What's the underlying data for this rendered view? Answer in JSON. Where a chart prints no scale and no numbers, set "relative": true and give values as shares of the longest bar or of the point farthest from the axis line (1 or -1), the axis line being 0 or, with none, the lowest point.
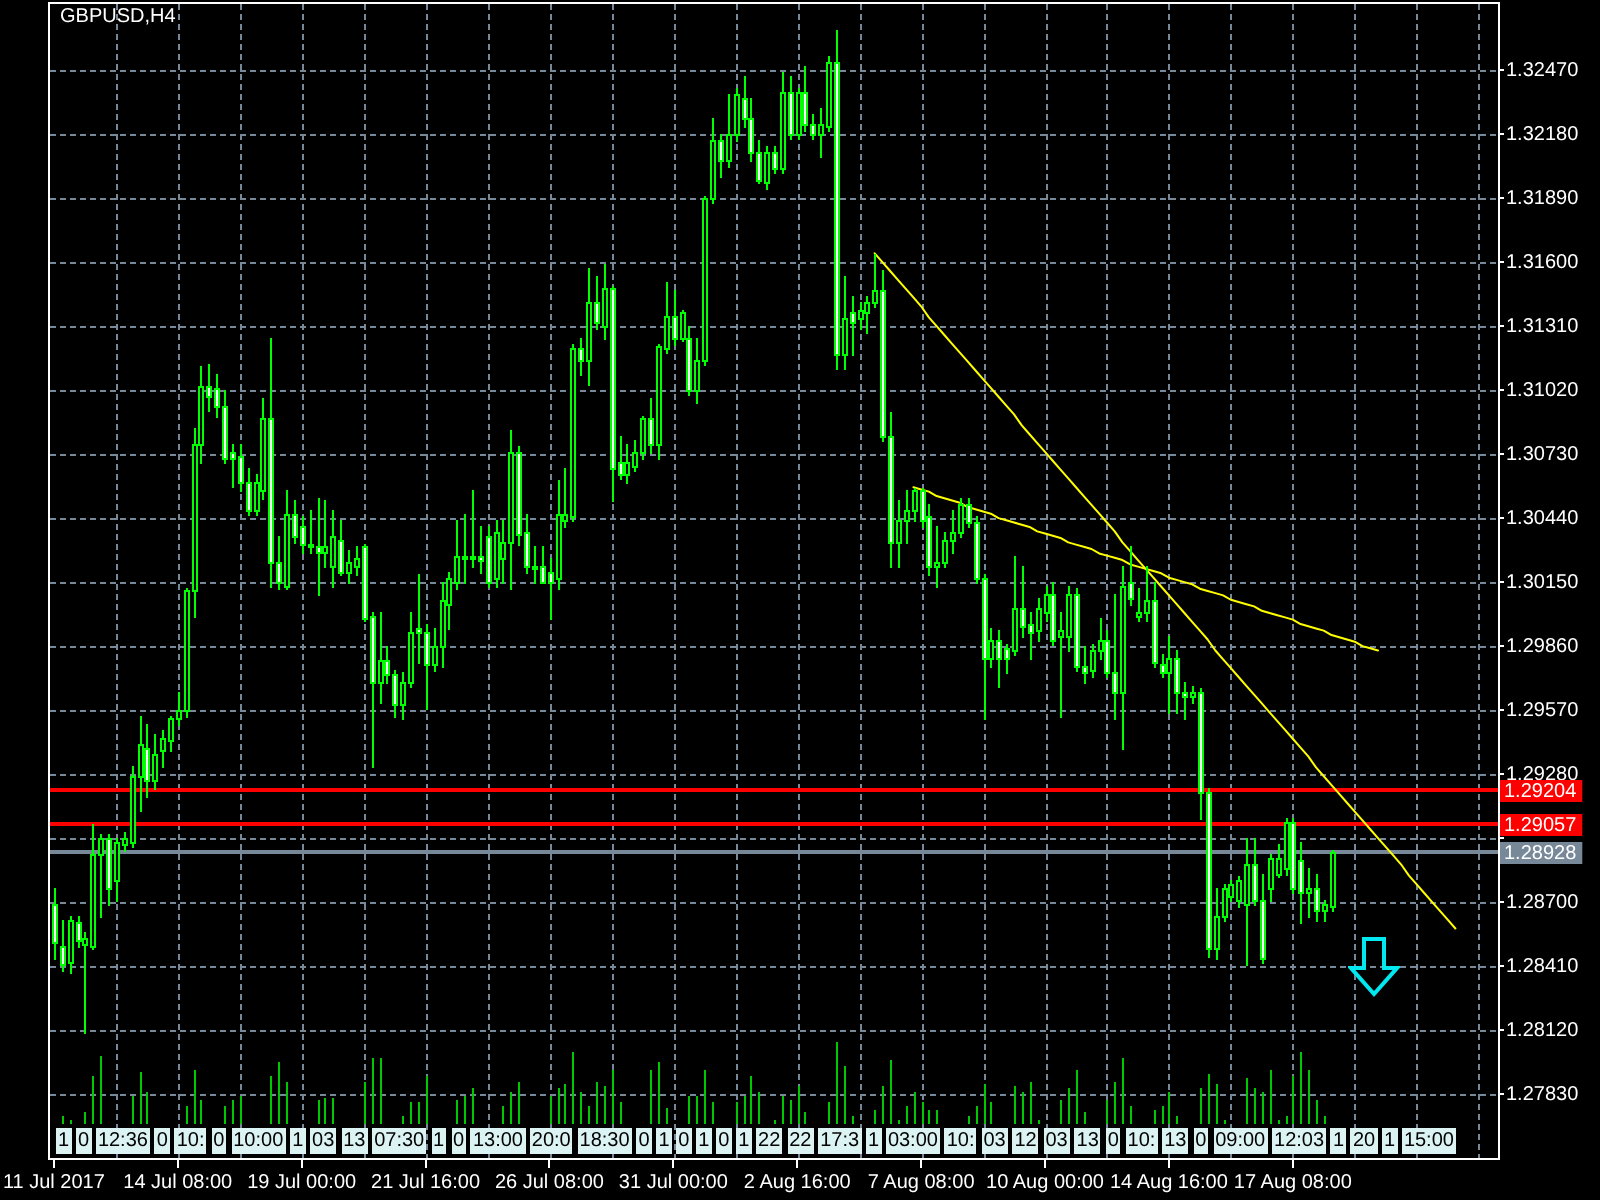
{
  "chart_data": [
    {
      "type": "candlestick",
      "title": "GBPUSD,H4",
      "categories": [
        "11 Jul 2017",
        null,
        null,
        null,
        null,
        null,
        null,
        null,
        null,
        null,
        null,
        null,
        null,
        null,
        null,
        null,
        "14 Jul 08:00",
        null,
        null,
        null,
        null,
        null,
        null,
        null,
        null,
        null,
        null,
        null,
        null,
        null,
        null,
        null,
        "19 Jul 00:00",
        null,
        null,
        null,
        null,
        null,
        null,
        null,
        null,
        null,
        null,
        null,
        null,
        null,
        null,
        null,
        "21 Jul 16:00",
        null,
        null,
        null,
        null,
        null,
        null,
        null,
        null,
        null,
        null,
        null,
        null,
        null,
        null,
        null,
        "26 Jul 08:00",
        null,
        null,
        null,
        null,
        null,
        null,
        null,
        null,
        null,
        null,
        null,
        null,
        null,
        null,
        null,
        "31 Jul 00:00",
        null,
        null,
        null,
        null,
        null,
        null,
        null,
        null,
        null,
        null,
        null,
        null,
        null,
        null,
        null,
        "2 Aug 16:00",
        null,
        null,
        null,
        null,
        null,
        null,
        null,
        null,
        null,
        null,
        null,
        null,
        null,
        null,
        null,
        "7 Aug 08:00",
        null,
        null,
        null,
        null,
        null,
        null,
        null,
        null,
        null,
        null,
        null,
        null,
        null,
        null,
        null,
        "10 Aug 00:00",
        null,
        null,
        null,
        null,
        null,
        null,
        null,
        null,
        null,
        null,
        null,
        null,
        null,
        null,
        null,
        "14 Aug 16:00",
        null,
        null,
        null,
        null,
        null,
        null,
        null,
        null,
        null,
        null,
        null,
        null,
        null,
        null,
        null,
        "17 Aug 08:00",
        null,
        null,
        null,
        null,
        null,
        null,
        null,
        null,
        null,
        null,
        null,
        null,
        null,
        null,
        null,
        null,
        null,
        null,
        null,
        null,
        null,
        null,
        null,
        null,
        null,
        null
      ],
      "series": [
        {
          "color": "#00ff00",
          "ohlc": [
            [
              1.2869,
              1.2876,
              1.2845,
              1.2852
            ],
            [
              1.285,
              1.2862,
              1.2839,
              1.2842
            ],
            [
              1.2843,
              1.2864,
              1.2838,
              1.2862
            ],
            [
              1.2861,
              1.2864,
              1.285,
              1.2853
            ],
            [
              1.2851,
              1.2856,
              1.2811,
              1.2854
            ],
            [
              1.285,
              1.2905,
              1.2849,
              1.2892
            ],
            [
              1.2892,
              1.2901,
              1.2864,
              1.2899
            ],
            [
              1.2899,
              1.2901,
              1.2869,
              1.2876
            ],
            [
              1.288,
              1.2899,
              1.2871,
              1.2897
            ],
            [
              1.2896,
              1.2902,
              1.2894,
              1.2899
            ],
            [
              1.2897,
              1.2932,
              1.2895,
              1.2927
            ],
            [
              1.2927,
              1.2954,
              1.2912,
              1.2942
            ],
            [
              1.294,
              1.2951,
              1.2918,
              1.2925
            ],
            [
              1.2925,
              1.2946,
              1.2922,
              1.2937
            ],
            [
              1.2939,
              1.2948,
              1.2932,
              1.2944
            ],
            [
              1.2943,
              1.2954,
              1.2939,
              1.2953
            ],
            [
              1.2953,
              1.2965,
              1.2951,
              1.2957
            ],
            [
              1.2957,
              1.3012,
              1.2954,
              1.3011
            ],
            [
              1.3011,
              1.3085,
              1.3,
              1.3078
            ],
            [
              1.3078,
              1.3113,
              1.3069,
              1.3104
            ],
            [
              1.3104,
              1.3114,
              1.3093,
              1.3099
            ],
            [
              1.3103,
              1.3109,
              1.309,
              1.3095
            ],
            [
              1.3095,
              1.3102,
              1.3069,
              1.3071
            ],
            [
              1.3074,
              1.3078,
              1.3059,
              1.3071
            ],
            [
              1.3072,
              1.3078,
              1.3057,
              1.306
            ],
            [
              1.306,
              1.3067,
              1.3046,
              1.3048
            ],
            [
              1.3048,
              1.3064,
              1.3046,
              1.306
            ],
            [
              1.3057,
              1.3098,
              1.3053,
              1.3089
            ],
            [
              1.3089,
              1.3126,
              1.3013,
              1.3024
            ],
            [
              1.3024,
              1.3036,
              1.3012,
              1.3015
            ],
            [
              1.3013,
              1.3057,
              1.3012,
              1.3046
            ],
            [
              1.3046,
              1.3052,
              1.3033,
              1.3036
            ],
            [
              1.304,
              1.3045,
              1.3029,
              1.3032
            ],
            [
              1.3032,
              1.3048,
              1.3029,
              1.3031
            ],
            [
              1.3031,
              1.3053,
              1.301,
              1.3029
            ],
            [
              1.3029,
              1.3052,
              1.3022,
              1.3031
            ],
            [
              1.3022,
              1.3048,
              1.3013,
              1.3036
            ],
            [
              1.3034,
              1.3043,
              1.3019,
              1.302
            ],
            [
              1.302,
              1.303,
              1.3015,
              1.3024
            ],
            [
              1.3022,
              1.3031,
              1.3019,
              1.3026
            ],
            [
              1.3031,
              1.3032,
              1.2998,
              1.2999
            ],
            [
              1.3,
              1.3001,
              1.2932,
              1.297
            ],
            [
              1.297,
              1.3001,
              1.2961,
              1.298
            ],
            [
              1.298,
              1.2986,
              1.297,
              1.2973
            ],
            [
              1.2973,
              1.2975,
              1.2954,
              1.296
            ],
            [
              1.296,
              1.2974,
              1.2953,
              1.297
            ],
            [
              1.297,
              1.3001,
              1.2968,
              1.2992
            ],
            [
              1.2994,
              1.3019,
              1.2979,
              1.2992
            ],
            [
              1.2992,
              1.2996,
              1.2958,
              1.2978
            ],
            [
              1.2978,
              1.2994,
              1.2975,
              1.2986
            ],
            [
              1.2986,
              1.3015,
              1.2977,
              1.3007
            ],
            [
              1.3005,
              1.302,
              1.2994,
              1.3017
            ],
            [
              1.3015,
              1.3043,
              1.3012,
              1.3027
            ],
            [
              1.3027,
              1.3046,
              1.3015,
              1.3026
            ],
            [
              1.3026,
              1.3057,
              1.3022,
              1.3027
            ],
            [
              1.3027,
              1.304,
              1.302,
              1.3025
            ],
            [
              1.3036,
              1.304,
              1.3013,
              1.3015
            ],
            [
              1.3017,
              1.3043,
              1.3013,
              1.3038
            ],
            [
              1.3026,
              1.3043,
              1.3015,
              1.3033
            ],
            [
              1.3033,
              1.3084,
              1.3012,
              1.3074
            ],
            [
              1.3074,
              1.3077,
              1.3032,
              1.3037
            ],
            [
              1.3038,
              1.3046,
              1.302,
              1.3022
            ],
            [
              1.3022,
              1.3031,
              1.3015,
              1.3021
            ],
            [
              1.3022,
              1.3031,
              1.3015,
              1.3015
            ],
            [
              1.302,
              1.3026,
              1.2999,
              1.3015
            ],
            [
              1.3017,
              1.3061,
              1.3012,
              1.3046
            ],
            [
              1.3043,
              1.3067,
              1.304,
              1.3046
            ],
            [
              1.3045,
              1.3123,
              1.3043,
              1.3121
            ],
            [
              1.3121,
              1.3126,
              1.3109,
              1.3116
            ],
            [
              1.3116,
              1.3157,
              1.3105,
              1.3142
            ],
            [
              1.3142,
              1.3154,
              1.313,
              1.3133
            ],
            [
              1.3131,
              1.3159,
              1.3126,
              1.3148
            ],
            [
              1.3148,
              1.3149,
              1.3052,
              1.3067
            ],
            [
              1.3069,
              1.3081,
              1.3062,
              1.3064
            ],
            [
              1.3064,
              1.3078,
              1.306,
              1.3069
            ],
            [
              1.3068,
              1.3079,
              1.3066,
              1.3074
            ],
            [
              1.3074,
              1.309,
              1.3071,
              1.3089
            ],
            [
              1.3089,
              1.3098,
              1.3074,
              1.3078
            ],
            [
              1.3078,
              1.3123,
              1.3071,
              1.3122
            ],
            [
              1.3121,
              1.3151,
              1.3119,
              1.3136
            ],
            [
              1.3136,
              1.3147,
              1.3123,
              1.3126
            ],
            [
              1.3126,
              1.3138,
              1.3125,
              1.3137
            ],
            [
              1.3126,
              1.3131,
              1.31,
              1.3102
            ],
            [
              1.3102,
              1.3126,
              1.3097,
              1.3116
            ],
            [
              1.3116,
              1.319,
              1.3114,
              1.3189
            ],
            [
              1.3189,
              1.3225,
              1.3187,
              1.3215
            ],
            [
              1.3215,
              1.3218,
              1.3199,
              1.3206
            ],
            [
              1.3206,
              1.3236,
              1.3204,
              1.3218
            ],
            [
              1.3218,
              1.3239,
              1.3215,
              1.3236
            ],
            [
              1.3234,
              1.3244,
              1.3222,
              1.3225
            ],
            [
              1.3225,
              1.3234,
              1.3206,
              1.321
            ],
            [
              1.321,
              1.3215,
              1.3196,
              1.3197
            ],
            [
              1.3196,
              1.3213,
              1.3194,
              1.321
            ],
            [
              1.321,
              1.3213,
              1.3201,
              1.3203
            ],
            [
              1.3203,
              1.3246,
              1.3201,
              1.3237
            ],
            [
              1.3237,
              1.3244,
              1.3216,
              1.3218
            ],
            [
              1.3218,
              1.3239,
              1.3216,
              1.3237
            ],
            [
              1.3237,
              1.3249,
              1.322,
              1.3223
            ],
            [
              1.3223,
              1.3227,
              1.3216,
              1.3218
            ],
            [
              1.3218,
              1.323,
              1.3208,
              1.3223
            ],
            [
              1.3222,
              1.3253,
              1.322,
              1.3251
            ],
            [
              1.3251,
              1.3265,
              1.3112,
              1.3118
            ],
            [
              1.3118,
              1.3154,
              1.3112,
              1.3135
            ],
            [
              1.3137,
              1.3145,
              1.3118,
              1.3133
            ],
            [
              1.3135,
              1.3142,
              1.313,
              1.3138
            ],
            [
              1.3137,
              1.3145,
              1.3128,
              1.3142
            ],
            [
              1.3142,
              1.3164,
              1.314,
              1.3147
            ],
            [
              1.3147,
              1.3156,
              1.3079,
              1.3081
            ],
            [
              1.3081,
              1.3092,
              1.3022,
              1.3033
            ],
            [
              1.3033,
              1.3052,
              1.3022,
              1.3043
            ],
            [
              1.3043,
              1.3057,
              1.3033,
              1.3048
            ],
            [
              1.3048,
              1.3058,
              1.3043,
              1.3057
            ],
            [
              1.3057,
              1.3058,
              1.304,
              1.3043
            ],
            [
              1.3045,
              1.305,
              1.3019,
              1.3022
            ],
            [
              1.3022,
              1.304,
              1.3013,
              1.3024
            ],
            [
              1.3024,
              1.3038,
              1.3022,
              1.3034
            ],
            [
              1.3034,
              1.3048,
              1.3029,
              1.3038
            ],
            [
              1.3038,
              1.3053,
              1.3036,
              1.305
            ],
            [
              1.305,
              1.3053,
              1.304,
              1.3042
            ],
            [
              1.3042,
              1.3045,
              1.3015,
              1.3017
            ],
            [
              1.3017,
              1.3019,
              1.2953,
              1.2981
            ],
            [
              1.2981,
              1.2994,
              1.2977,
              1.2989
            ],
            [
              1.2989,
              1.2993,
              1.2968,
              1.2981
            ],
            [
              1.2985,
              1.2987,
              1.2974,
              1.2981
            ],
            [
              1.2984,
              1.3027,
              1.2982,
              1.3003
            ],
            [
              1.3003,
              1.3022,
              1.2991,
              1.2995
            ],
            [
              1.2996,
              1.3001,
              1.2981,
              1.2992
            ],
            [
              1.2993,
              1.3008,
              1.2989,
              1.3003
            ],
            [
              1.3001,
              1.3013,
              1.2998,
              1.301
            ],
            [
              1.301,
              1.3015,
              1.2987,
              1.2989
            ],
            [
              1.2991,
              1.3001,
              1.2954,
              1.2993
            ],
            [
              1.2991,
              1.3013,
              1.2984,
              1.301
            ],
            [
              1.301,
              1.3012,
              1.2975,
              1.2977
            ],
            [
              1.2977,
              1.2986,
              1.297,
              1.2974
            ],
            [
              1.2975,
              1.2987,
              1.2972,
              1.2984
            ],
            [
              1.2984,
              1.2999,
              1.2981,
              1.2989
            ],
            [
              1.2989,
              1.2993,
              1.2972,
              1.2974
            ],
            [
              1.2974,
              1.301,
              1.2953,
              1.2965
            ],
            [
              1.2965,
              1.3022,
              1.294,
              1.3013
            ],
            [
              1.3015,
              1.3031,
              1.3005,
              1.3008
            ],
            [
              1.3,
              1.3012,
              1.2998,
              1.3001
            ],
            [
              1.3001,
              1.3022,
              1.2998,
              1.3007
            ],
            [
              1.3007,
              1.3015,
              1.2977,
              1.2979
            ],
            [
              1.2978,
              1.2982,
              1.2972,
              1.2974
            ],
            [
              1.2974,
              1.2991,
              1.2956,
              1.2981
            ],
            [
              1.2981,
              1.2984,
              1.2956,
              1.2965
            ],
            [
              1.2965,
              1.297,
              1.2953,
              1.2963
            ],
            [
              1.2963,
              1.2968,
              1.2961,
              1.2965
            ],
            [
              1.2965,
              1.2967,
              1.2908,
              1.292
            ],
            [
              1.292,
              1.2922,
              1.2846,
              1.2849
            ],
            [
              1.2849,
              1.2876,
              1.2845,
              1.2864
            ],
            [
              1.2864,
              1.2878,
              1.2862,
              1.2876
            ],
            [
              1.2873,
              1.288,
              1.2871,
              1.2878
            ],
            [
              1.2871,
              1.2882,
              1.2868,
              1.288
            ],
            [
              1.2869,
              1.2899,
              1.2842,
              1.2887
            ],
            [
              1.2887,
              1.2899,
              1.2869,
              1.2871
            ],
            [
              1.2871,
              1.2883,
              1.2843,
              1.2845
            ],
            [
              1.2876,
              1.2892,
              1.2871,
              1.289
            ],
            [
              1.2883,
              1.2896,
              1.2882,
              1.289
            ],
            [
              1.2885,
              1.2908,
              1.2883,
              1.2906
            ],
            [
              1.2906,
              1.2908,
              1.2875,
              1.2876
            ],
            [
              1.2889,
              1.2897,
              1.2861,
              1.2875
            ],
            [
              1.2875,
              1.2885,
              1.2864,
              1.2876
            ],
            [
              1.2876,
              1.2883,
              1.2862,
              1.2866
            ],
            [
              1.2866,
              1.2871,
              1.2862,
              1.2869
            ],
            [
              1.2868,
              1.2894,
              1.2866,
              1.2893
            ],
            null,
            null,
            null,
            null,
            null,
            null,
            null,
            null,
            null,
            null,
            null,
            null,
            null,
            null,
            null,
            null,
            null,
            null,
            null,
            null,
            null
          ]
        },
        {
          "type": "line",
          "color": "#ffff00",
          "values": [
            null,
            null,
            null,
            null,
            null,
            null,
            null,
            null,
            null,
            null,
            null,
            null,
            null,
            null,
            null,
            null,
            null,
            null,
            null,
            null,
            null,
            null,
            null,
            null,
            null,
            null,
            null,
            null,
            null,
            null,
            null,
            null,
            null,
            null,
            null,
            null,
            null,
            null,
            null,
            null,
            null,
            null,
            null,
            null,
            null,
            null,
            null,
            null,
            null,
            null,
            null,
            null,
            null,
            null,
            null,
            null,
            null,
            null,
            null,
            null,
            null,
            null,
            null,
            null,
            null,
            null,
            null,
            null,
            null,
            null,
            null,
            null,
            null,
            null,
            null,
            null,
            null,
            null,
            null,
            null,
            null,
            null,
            null,
            null,
            null,
            null,
            null,
            null,
            null,
            null,
            null,
            null,
            null,
            null,
            null,
            null,
            null,
            null,
            null,
            null,
            null,
            null,
            null,
            null,
            null,
            null,
            1.3164,
            1.316,
            1.3156,
            1.3152,
            1.3148,
            1.3144,
            1.314,
            1.3135,
            1.3131,
            1.3127,
            1.3123,
            1.3119,
            1.3115,
            1.3111,
            1.3107,
            1.3103,
            1.3099,
            1.3095,
            1.3091,
            1.3086,
            1.3082,
            1.3078,
            1.3074,
            1.307,
            1.3066,
            1.3062,
            1.3058,
            1.3054,
            1.305,
            1.3046,
            1.3042,
            1.3038,
            1.3033,
            1.3029,
            1.3025,
            1.3021,
            1.3017,
            1.3013,
            1.3009,
            1.3005,
            1.3001,
            1.2997,
            1.2993,
            1.2989,
            1.2984,
            1.298,
            1.2976,
            1.2972,
            1.2968,
            1.2964,
            1.296,
            1.2956,
            1.2952,
            1.2948,
            1.2944,
            1.294,
            1.2936,
            1.2931,
            1.2927,
            1.2923,
            1.2919,
            1.2915,
            1.2911,
            1.2907,
            1.2903,
            1.2899,
            1.2895,
            1.2891,
            1.2887,
            1.2882,
            1.2878,
            1.2874,
            1.287,
            1.2866,
            1.2862,
            1.2858,
            null,
            null,
            null,
            null,
            null
          ]
        },
        {
          "type": "line",
          "color": "#ffff00",
          "values": [
            null,
            null,
            null,
            null,
            null,
            null,
            null,
            null,
            null,
            null,
            null,
            null,
            null,
            null,
            null,
            null,
            null,
            null,
            null,
            null,
            null,
            null,
            null,
            null,
            null,
            null,
            null,
            null,
            null,
            null,
            null,
            null,
            null,
            null,
            null,
            null,
            null,
            null,
            null,
            null,
            null,
            null,
            null,
            null,
            null,
            null,
            null,
            null,
            null,
            null,
            null,
            null,
            null,
            null,
            null,
            null,
            null,
            null,
            null,
            null,
            null,
            null,
            null,
            null,
            null,
            null,
            null,
            null,
            null,
            null,
            null,
            null,
            null,
            null,
            null,
            null,
            null,
            null,
            null,
            null,
            null,
            null,
            null,
            null,
            null,
            null,
            null,
            null,
            null,
            null,
            null,
            null,
            null,
            null,
            null,
            null,
            null,
            null,
            null,
            null,
            null,
            null,
            null,
            null,
            null,
            null,
            null,
            null,
            null,
            null,
            null,
            1.3058,
            1.3057,
            1.3056,
            1.3054,
            1.3053,
            1.3052,
            1.3051,
            1.3049,
            1.3048,
            1.3047,
            1.3046,
            1.3044,
            1.3043,
            1.3042,
            1.3041,
            1.304,
            1.3038,
            1.3037,
            1.3036,
            1.3035,
            1.3033,
            1.3032,
            1.3031,
            1.303,
            1.3028,
            1.3027,
            1.3026,
            1.3025,
            1.3023,
            1.3022,
            1.3021,
            1.302,
            1.3019,
            1.3017,
            1.3016,
            1.3015,
            1.3014,
            1.3012,
            1.3011,
            1.301,
            1.3009,
            1.3007,
            1.3006,
            1.3005,
            1.3004,
            1.3002,
            1.3001,
            1.3,
            1.2999,
            1.2998,
            1.2996,
            1.2995,
            1.2994,
            1.2993,
            1.2991,
            1.299,
            1.2989,
            1.2988,
            1.2986,
            1.2985,
            1.2984,
            null,
            null,
            null,
            null,
            null,
            null,
            null,
            null,
            null,
            null,
            null,
            null,
            null,
            null,
            null
          ]
        }
      ],
      "ylim": [
        1.2754,
        1.3277
      ],
      "yticks": [
        {
          "value": 1.3247,
          "label": "1.32470"
        },
        {
          "value": 1.3218,
          "label": "1.32180"
        },
        {
          "value": 1.3189,
          "label": "1.31890"
        },
        {
          "value": 1.316,
          "label": "1.31600"
        },
        {
          "value": 1.3131,
          "label": "1.31310"
        },
        {
          "value": 1.3102,
          "label": "1.31020"
        },
        {
          "value": 1.3073,
          "label": "1.30730"
        },
        {
          "value": 1.3044,
          "label": "1.30440"
        },
        {
          "value": 1.3015,
          "label": "1.30150"
        },
        {
          "value": 1.2986,
          "label": "1.29860"
        },
        {
          "value": 1.2957,
          "label": "1.29570"
        },
        {
          "value": 1.2928,
          "label": "1.29280"
        },
        {
          "value": 1.2899,
          "label": null
        },
        {
          "value": 1.287,
          "label": "1.28700"
        },
        {
          "value": 1.2841,
          "label": "1.28410"
        },
        {
          "value": 1.2812,
          "label": "1.28120"
        },
        {
          "value": 1.2783,
          "label": "1.27830"
        }
      ],
      "grid": true,
      "ref_lines": [
        {
          "axis": "y",
          "value": 1.29204,
          "label": "1.29204",
          "color": "#ff0000"
        },
        {
          "axis": "y",
          "value": 1.29057,
          "label": "1.29057",
          "color": "#ff0000"
        },
        {
          "axis": "y",
          "value": 1.28928,
          "label": "1.28928",
          "color": "#778899"
        }
      ],
      "annotations": [
        "1",
        "0",
        "12:36",
        "0",
        "10:",
        "0",
        "10:00",
        "1",
        "03",
        "13",
        "07:30",
        "1",
        "0",
        "13:00",
        "20:0",
        "18:30",
        "0",
        "1",
        "0",
        "1",
        "0",
        "1",
        "22",
        "22",
        "17:3",
        "1",
        "03:00",
        "10:",
        "03",
        "12",
        "03",
        "13",
        "0",
        "10:",
        "13",
        "0",
        "09:00",
        "12:03",
        "1",
        "20",
        "1",
        "15:00"
      ]
    },
    {
      "type": "bar",
      "relative": true,
      "color": "#00c800",
      "categories": [
        null,
        null,
        null,
        null,
        null,
        null,
        null,
        null,
        null,
        null,
        null,
        null,
        null,
        null,
        null,
        null,
        null,
        null,
        null,
        null,
        null,
        null,
        null,
        null,
        null,
        null,
        null,
        null,
        null,
        null,
        null,
        null,
        null,
        null,
        null,
        null,
        null,
        null,
        null,
        null,
        null,
        null,
        null,
        null,
        null,
        null,
        null,
        null,
        null,
        null,
        null,
        null,
        null,
        null,
        null,
        null,
        null,
        null,
        null,
        null,
        null,
        null,
        null,
        null,
        null,
        null,
        null,
        null,
        null,
        null,
        null,
        null,
        null,
        null,
        null,
        null,
        null,
        null,
        null,
        null,
        null,
        null,
        null,
        null,
        null,
        null,
        null,
        null,
        null,
        null,
        null,
        null,
        null,
        null,
        null,
        null,
        null,
        null,
        null,
        null,
        null,
        null,
        null,
        null,
        null,
        null,
        null,
        null,
        null,
        null,
        null,
        null,
        null,
        null,
        null,
        null,
        null,
        null,
        null,
        null,
        null,
        null,
        null,
        null,
        null,
        null,
        null,
        null,
        null,
        null,
        null,
        null,
        null,
        null,
        null,
        null,
        null,
        null,
        null,
        null,
        null,
        null,
        null,
        null,
        null,
        null,
        null,
        null,
        null,
        null,
        null,
        null,
        null,
        null,
        null,
        null,
        null,
        null,
        null,
        null,
        null,
        null,
        null,
        null,
        null,
        null,
        null,
        null,
        null,
        null,
        null,
        null,
        null,
        null,
        null,
        null,
        null,
        null,
        null,
        null,
        null,
        null,
        null,
        null,
        null,
        null,
        null
      ],
      "values": [
        null,
        0.1,
        0.06,
        null,
        0.14,
        0.59,
        0.84,
        null,
        null,
        null,
        0.34,
        0.63,
        0.39,
        null,
        null,
        null,
        null,
        0.22,
        0.67,
        0.3,
        null,
        null,
        0.22,
        0.3,
        0.34,
        null,
        null,
        null,
        0.59,
        0.75,
        0.51,
        null,
        null,
        null,
        0.3,
        0.32,
        0.32,
        null,
        null,
        null,
        0.51,
        0.8,
        0.8,
        null,
        null,
        0.1,
        0.26,
        0.26,
        0.59,
        null,
        null,
        null,
        0.3,
        0.34,
        0.43,
        null,
        null,
        null,
        0.22,
        0.39,
        0.52,
        null,
        null,
        null,
        0.34,
        0.43,
        0.49,
        0.87,
        0.39,
        0.22,
        0.51,
        0.47,
        0.66,
        0.26,
        null,
        null,
        null,
        0.67,
        0.75,
        0.2,
        null,
        null,
        0.34,
        0.34,
        0.67,
        0.26,
        null,
        null,
        0.26,
        0.34,
        0.59,
        0.39,
        null,
        0.06,
        0.34,
        0.3,
        0.47,
        0.14,
        null,
        null,
        0.26,
        1,
        0.71,
        0.1,
        null,
        null,
        0.18,
        0.47,
        0.77,
        0.06,
        0.22,
        0.39,
        0.28,
        0.18,
        0.18,
        null,
        null,
        null,
        0.1,
        0.22,
        0.49,
        0.26,
        null,
        null,
        0.47,
        0.39,
        0.52,
        0.06,
        null,
        null,
        0.3,
        0.43,
        0.65,
        0.14,
        null,
        null,
        0.3,
        0.51,
        0.8,
        0.22,
        null,
        null,
        0.18,
        0.22,
        0.39,
        0.1,
        null,
        null,
        0.43,
        0.61,
        0.48,
        0.06,
        null,
        null,
        0.55,
        0.44,
        0.39,
        0.65,
        0.06,
        0.1,
        0.59,
        0.89,
        0.67,
        0.3,
        0.1,
        null,
        null,
        null,
        null,
        null,
        null,
        null,
        null,
        null,
        null,
        null,
        null,
        null,
        null,
        null,
        null,
        null,
        null,
        null,
        null,
        null,
        null
      ]
    }
  ]
}
